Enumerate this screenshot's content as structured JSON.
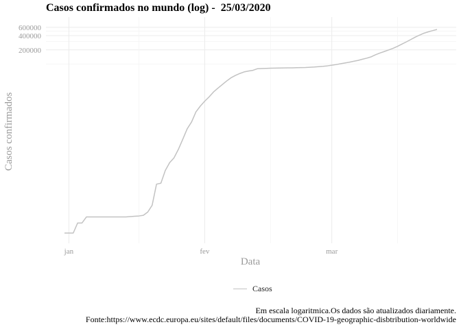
{
  "chart_data": {
    "type": "line",
    "title": "Casos confirmados no mundo (log) -  25/03/2020",
    "xlabel": "Data",
    "ylabel": "Casos confirmados",
    "y_scale": "log",
    "y_tick_labels": [
      {
        "value": 600000,
        "label": "600000"
      },
      {
        "value": 400000,
        "label": "400000"
      },
      {
        "value": 200000,
        "label": "200000"
      }
    ],
    "x_tick_labels": [
      {
        "date": "2020-01-01",
        "label": "jan"
      },
      {
        "date": "2020-02-01",
        "label": "fev"
      },
      {
        "date": "2020-03-01",
        "label": "mar"
      }
    ],
    "xlim": [
      "2019-12-31",
      "2020-03-25"
    ],
    "grid": true,
    "legend_position": "bottom",
    "series": [
      {
        "name": "Casos",
        "color": "#c2c2c2",
        "points": [
          [
            "2019-12-31",
            27
          ],
          [
            "2020-01-01",
            27
          ],
          [
            "2020-01-02",
            27
          ],
          [
            "2020-01-03",
            44
          ],
          [
            "2020-01-04",
            44
          ],
          [
            "2020-01-05",
            59
          ],
          [
            "2020-01-06",
            59
          ],
          [
            "2020-01-07",
            59
          ],
          [
            "2020-01-08",
            59
          ],
          [
            "2020-01-09",
            59
          ],
          [
            "2020-01-10",
            59
          ],
          [
            "2020-01-11",
            59
          ],
          [
            "2020-01-12",
            59
          ],
          [
            "2020-01-13",
            59
          ],
          [
            "2020-01-14",
            59
          ],
          [
            "2020-01-15",
            60
          ],
          [
            "2020-01-16",
            61
          ],
          [
            "2020-01-17",
            62
          ],
          [
            "2020-01-18",
            64
          ],
          [
            "2020-01-19",
            75
          ],
          [
            "2020-01-20",
            104
          ],
          [
            "2020-01-21",
            291
          ],
          [
            "2020-01-22",
            305
          ],
          [
            "2020-01-23",
            565
          ],
          [
            "2020-01-24",
            830
          ],
          [
            "2020-01-25",
            1050
          ],
          [
            "2020-01-26",
            1590
          ],
          [
            "2020-01-27",
            2600
          ],
          [
            "2020-01-28",
            4300
          ],
          [
            "2020-01-29",
            6000
          ],
          [
            "2020-01-30",
            9800
          ],
          [
            "2020-01-31",
            13000
          ],
          [
            "2020-02-01",
            16500
          ],
          [
            "2020-02-02",
            20300
          ],
          [
            "2020-02-03",
            25800
          ],
          [
            "2020-02-04",
            31000
          ],
          [
            "2020-02-05",
            37000
          ],
          [
            "2020-02-06",
            44000
          ],
          [
            "2020-02-07",
            51500
          ],
          [
            "2020-02-08",
            57700
          ],
          [
            "2020-02-09",
            63400
          ],
          [
            "2020-02-10",
            68500
          ],
          [
            "2020-02-11",
            71500
          ],
          [
            "2020-02-12",
            74000
          ],
          [
            "2020-02-13",
            79900
          ],
          [
            "2020-02-14",
            80800
          ],
          [
            "2020-02-15",
            81300
          ],
          [
            "2020-02-16",
            81900
          ],
          [
            "2020-02-17",
            82400
          ],
          [
            "2020-02-18",
            82800
          ],
          [
            "2020-02-19",
            83100
          ],
          [
            "2020-02-20",
            83300
          ],
          [
            "2020-02-21",
            83600
          ],
          [
            "2020-02-22",
            84100
          ],
          [
            "2020-02-23",
            84500
          ],
          [
            "2020-02-24",
            85000
          ],
          [
            "2020-02-25",
            86000
          ],
          [
            "2020-02-26",
            87000
          ],
          [
            "2020-02-27",
            88500
          ],
          [
            "2020-02-28",
            90000
          ],
          [
            "2020-02-29",
            92000
          ],
          [
            "2020-03-01",
            95000
          ],
          [
            "2020-03-02",
            98000
          ],
          [
            "2020-03-03",
            102000
          ],
          [
            "2020-03-04",
            106000
          ],
          [
            "2020-03-05",
            110000
          ],
          [
            "2020-03-06",
            115000
          ],
          [
            "2020-03-07",
            120000
          ],
          [
            "2020-03-08",
            127000
          ],
          [
            "2020-03-09",
            134000
          ],
          [
            "2020-03-10",
            143000
          ],
          [
            "2020-03-11",
            158000
          ],
          [
            "2020-03-12",
            172000
          ],
          [
            "2020-03-13",
            185000
          ],
          [
            "2020-03-14",
            200000
          ],
          [
            "2020-03-15",
            216000
          ],
          [
            "2020-03-16",
            238000
          ],
          [
            "2020-03-17",
            265000
          ],
          [
            "2020-03-18",
            295000
          ],
          [
            "2020-03-19",
            330000
          ],
          [
            "2020-03-20",
            370000
          ],
          [
            "2020-03-21",
            410000
          ],
          [
            "2020-03-22",
            450000
          ],
          [
            "2020-03-23",
            480000
          ],
          [
            "2020-03-24",
            510000
          ],
          [
            "2020-03-25",
            540000
          ]
        ]
      }
    ]
  },
  "legend": {
    "label": "Casos"
  },
  "caption": {
    "line1": "Em escala logaritmica.Os dados são atualizados diariamente.",
    "line2": "Fonte:https://www.ecdc.europa.eu/sites/default/files/documents/COVID-19-geographic-disbtribution-worldwide"
  }
}
